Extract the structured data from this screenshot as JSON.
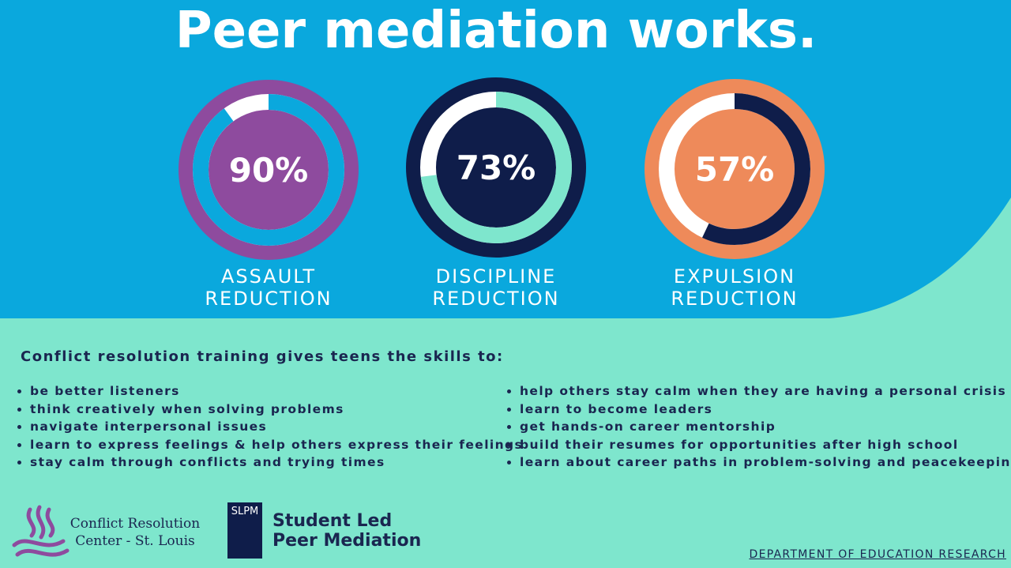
{
  "title": "Peer mediation works.",
  "chart_data": [
    {
      "type": "donut",
      "title": "ASSAULT REDUCTION",
      "values": [
        90
      ],
      "value_labels": [
        "90%"
      ],
      "color": "#0aa8dd",
      "rest_color": "#ffffff",
      "ring_color": "#8e4b9e",
      "center_color": "#8e4b9e"
    },
    {
      "type": "donut",
      "title": "DISCIPLINE REDUCTION",
      "values": [
        73
      ],
      "value_labels": [
        "73%"
      ],
      "color": "#7ee6cd",
      "rest_color": "#ffffff",
      "ring_color": "#0f1d4a",
      "center_color": "#0f1d4a"
    },
    {
      "type": "donut",
      "title": "EXPULSION REDUCTION",
      "values": [
        57
      ],
      "value_labels": [
        "57%"
      ],
      "color": "#0f1d4a",
      "rest_color": "#ffffff",
      "ring_color": "#ee8a5a",
      "center_color": "#ee8a5a"
    }
  ],
  "skills": {
    "heading": "Conflict resolution training gives teens the skills to:",
    "left": [
      "be better listeners",
      "think creatively when solving problems",
      "navigate interpersonal issues",
      "learn to express feelings & help others express their feelings",
      "stay calm through conflicts and trying times"
    ],
    "right": [
      "help others stay calm when they are having a personal crisis",
      "learn to become leaders",
      "get hands-on career mentorship",
      "build their resumes for opportunities after high school",
      "learn about career paths in problem-solving and peacekeeping"
    ]
  },
  "logos": {
    "crc": "Conflict Resolution Center - St. Louis",
    "slpm_mark": "SLPM",
    "slpm": "Student Led Peer Mediation"
  },
  "footer": "DEPARTMENT OF EDUCATION RESEARCH"
}
